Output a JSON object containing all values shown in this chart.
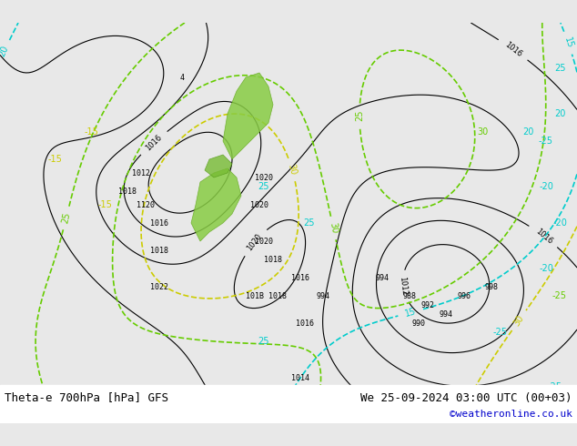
{
  "title_left": "Theta-e 700hPa [hPa] GFS",
  "title_right": "We 25-09-2024 03:00 UTC (00+03)",
  "copyright": "©weatheronline.co.uk",
  "bg_color": "#e8e8e8",
  "fig_width": 6.34,
  "fig_height": 4.9,
  "dpi": 100
}
